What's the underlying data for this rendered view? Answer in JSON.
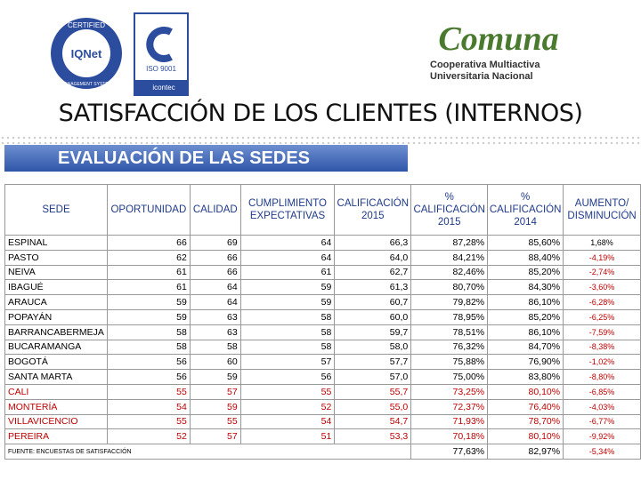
{
  "header": {
    "iqnet": {
      "ring_top": "CERTIFIED",
      "name": "IQNet",
      "ring_bottom": "MANAGEMENT SYSTEM"
    },
    "icontec": {
      "standard": "ISO 9001",
      "name": "icontec"
    },
    "brand": {
      "name": "Comuna",
      "line1": "Cooperativa Multiactiva",
      "line2": "Universitaria Nacional"
    }
  },
  "title": "SATISFACCIÓN DE LOS CLIENTES (INTERNOS)",
  "banner": "EVALUACIÓN DE LAS SEDES",
  "table": {
    "columns": [
      "SEDE",
      "OPORTUNIDAD",
      "CALIDAD",
      "CUMPLIMIENTO EXPECTATIVAS",
      "CALIFICACIÓN 2015",
      "% CALIFICACIÓN 2015",
      "% CALIFICACIÓN 2014",
      "AUMENTO/ DISMINUCIÓN"
    ],
    "rows": [
      [
        "ESPINAL",
        "66",
        "69",
        "64",
        "66,3",
        "87,28%",
        "85,60%",
        "1,68%"
      ],
      [
        "PASTO",
        "62",
        "66",
        "64",
        "64,0",
        "84,21%",
        "88,40%",
        "-4,19%"
      ],
      [
        "NEIVA",
        "61",
        "66",
        "61",
        "62,7",
        "82,46%",
        "85,20%",
        "-2,74%"
      ],
      [
        "IBAGUÉ",
        "61",
        "64",
        "59",
        "61,3",
        "80,70%",
        "84,30%",
        "-3,60%"
      ],
      [
        "ARAUCA",
        "59",
        "64",
        "59",
        "60,7",
        "79,82%",
        "86,10%",
        "-6,28%"
      ],
      [
        "POPAYÁN",
        "59",
        "63",
        "58",
        "60,0",
        "78,95%",
        "85,20%",
        "-6,25%"
      ],
      [
        "BARRANCABERMEJA",
        "58",
        "63",
        "58",
        "59,7",
        "78,51%",
        "86,10%",
        "-7,59%"
      ],
      [
        "BUCARAMANGA",
        "58",
        "58",
        "58",
        "58,0",
        "76,32%",
        "84,70%",
        "-8,38%"
      ],
      [
        "BOGOTÁ",
        "56",
        "60",
        "57",
        "57,7",
        "75,88%",
        "76,90%",
        "-1,02%"
      ],
      [
        "SANTA MARTA",
        "56",
        "59",
        "56",
        "57,0",
        "75,00%",
        "83,80%",
        "-8,80%"
      ],
      [
        "CALI",
        "55",
        "57",
        "55",
        "55,7",
        "73,25%",
        "80,10%",
        "-6,85%"
      ],
      [
        "MONTERÍA",
        "54",
        "59",
        "52",
        "55,0",
        "72,37%",
        "76,40%",
        "-4,03%"
      ],
      [
        "VILLAVICENCIO",
        "55",
        "55",
        "54",
        "54,7",
        "71,93%",
        "78,70%",
        "-6,77%"
      ],
      [
        "PEREIRA",
        "52",
        "57",
        "51",
        "53,3",
        "70,18%",
        "80,10%",
        "-9,92%"
      ]
    ],
    "red_rows": [
      10,
      11,
      12,
      13
    ],
    "red_color": "#c00000",
    "footer": [
      "FUENTE: ENCUESTAS DE SATISFACCIÓN",
      "77,63%",
      "82,97%",
      "-5,34%"
    ]
  }
}
